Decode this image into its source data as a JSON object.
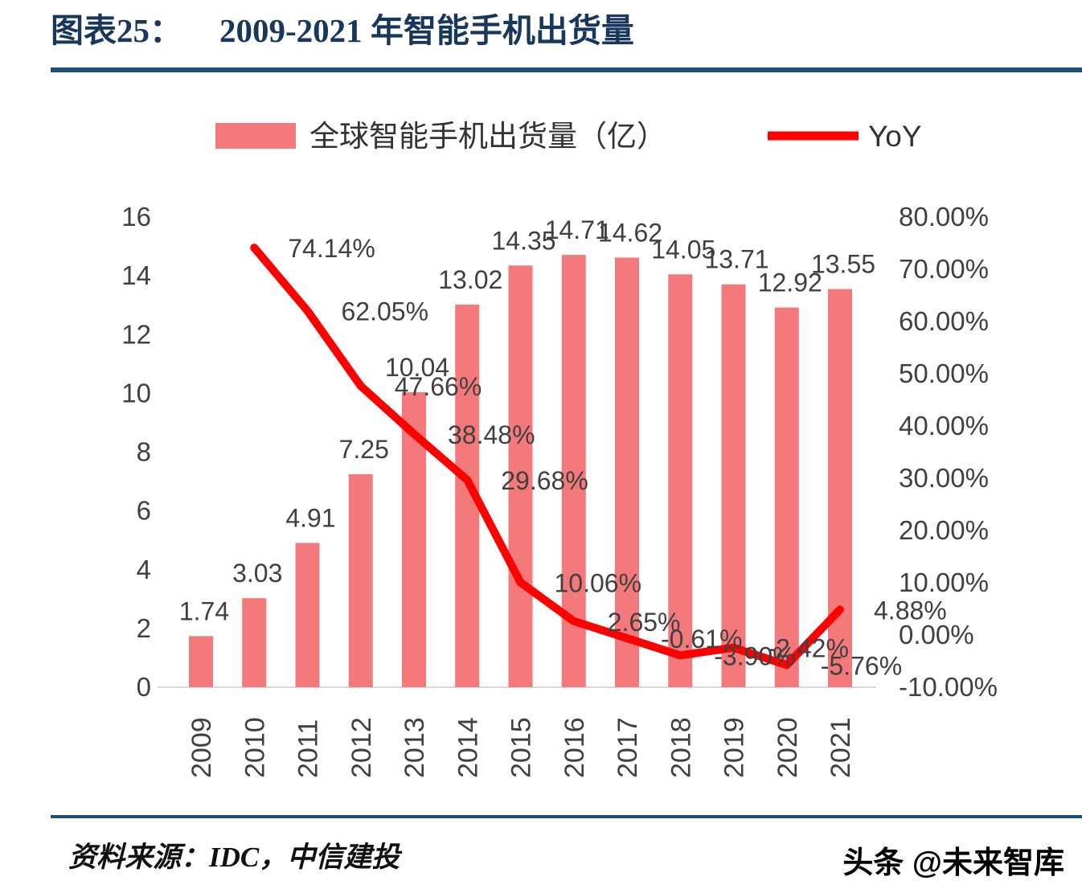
{
  "header": {
    "figure_label": "图表25：",
    "title": "2009-2021 年智能手机出货量"
  },
  "legend": {
    "bars_label": "全球智能手机出货量（亿）",
    "line_label": "YoY"
  },
  "footer": {
    "source": "资料来源：IDC，中信建投",
    "watermark": "头条 @未来智库"
  },
  "colors": {
    "title": "#17375E",
    "rule": "#1F4E79",
    "bar": "#F4797B",
    "line": "#FF0000",
    "label": "#404040",
    "axis_line": "#D9D9D9"
  },
  "chart_data": {
    "type": "bar",
    "title": "2009-2021 年智能手机出货量",
    "categories": [
      "2009",
      "2010",
      "2011",
      "2012",
      "2013",
      "2014",
      "2015",
      "2016",
      "2017",
      "2018",
      "2019",
      "2020",
      "2021"
    ],
    "series": [
      {
        "name": "全球智能手机出货量（亿）",
        "type": "bar",
        "axis": "left",
        "values": [
          1.74,
          3.03,
          4.91,
          7.25,
          10.04,
          13.02,
          14.35,
          14.71,
          14.62,
          14.05,
          13.71,
          12.92,
          13.55
        ],
        "labels": [
          "1.74",
          "3.03",
          "4.91",
          "7.25",
          "10.04",
          "13.02",
          "14.35",
          "14.71",
          "14.62",
          "14.05",
          "13.71",
          "12.92",
          "13.55"
        ]
      },
      {
        "name": "YoY",
        "type": "line",
        "axis": "right",
        "values_pct": [
          null,
          74.14,
          62.05,
          47.66,
          38.48,
          29.68,
          10.06,
          2.65,
          -0.61,
          -3.9,
          -2.42,
          -5.76,
          4.88
        ],
        "labels": [
          null,
          "74.14%",
          "62.05%",
          "47.66%",
          "38.48%",
          "29.68%",
          "10.06%",
          "2.65%",
          "-0.61%",
          "-3.90%",
          "-2.42%",
          "-5.76%",
          "4.88%"
        ]
      }
    ],
    "left_axis": {
      "min": 0,
      "max": 16,
      "step": 2,
      "tick_labels": [
        "16",
        "14",
        "12",
        "10",
        "8",
        "6",
        "4",
        "2",
        "0"
      ]
    },
    "right_axis": {
      "min": -10,
      "max": 80,
      "step": 10,
      "tick_labels": [
        "80.00%",
        "70.00%",
        "60.00%",
        "50.00%",
        "40.00%",
        "30.00%",
        "20.00%",
        "10.00%",
        "0.00%",
        "-10.00%"
      ]
    },
    "legend_position": "top",
    "grid": "off"
  }
}
